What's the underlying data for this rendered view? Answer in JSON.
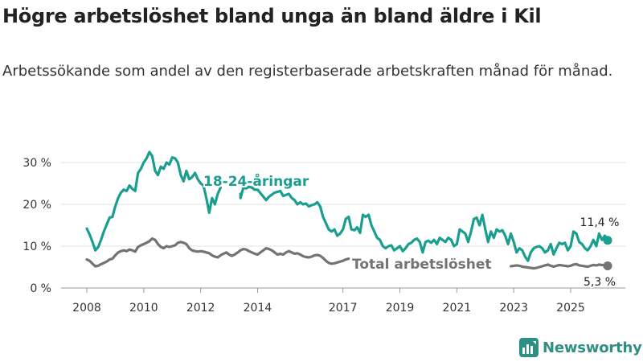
{
  "header": {
    "title": "Högre arbetslöshet bland unga än bland äldre i Kil",
    "subtitle": "Arbetssökande som andel av den registerbaserade arbetskraften månad för månad."
  },
  "brand": {
    "name": "Newsworthy"
  },
  "chart_data": {
    "type": "line",
    "title": "Högre arbetslöshet bland unga än bland äldre i Kil",
    "xlabel": "",
    "ylabel": "",
    "xlim": [
      2007.8,
      2026.5
    ],
    "ylim": [
      0,
      33
    ],
    "y_ticks": [
      0,
      10,
      20,
      30
    ],
    "y_tick_labels": [
      "0 %",
      "10 %",
      "20 %",
      "30 %"
    ],
    "x_ticks": [
      2008,
      2010,
      2012,
      2014,
      2017,
      2019,
      2021,
      2023,
      2025
    ],
    "x_tick_labels": [
      "2008",
      "2010",
      "2012",
      "2014",
      "2017",
      "2019",
      "2021",
      "2023",
      "2025"
    ],
    "grid": true,
    "series": [
      {
        "name": "18-24-åringar",
        "color": "#1a9e8f",
        "label": "18-24-åringar",
        "end_label": "11,4 %",
        "points": [
          [
            2008.0,
            14.2
          ],
          [
            2008.1,
            12.8
          ],
          [
            2008.2,
            11.0
          ],
          [
            2008.3,
            9.0
          ],
          [
            2008.4,
            9.8
          ],
          [
            2008.5,
            11.5
          ],
          [
            2008.6,
            13.5
          ],
          [
            2008.7,
            15.2
          ],
          [
            2008.8,
            16.8
          ],
          [
            2008.9,
            17.0
          ],
          [
            2009.0,
            19.5
          ],
          [
            2009.1,
            21.5
          ],
          [
            2009.2,
            22.8
          ],
          [
            2009.3,
            23.5
          ],
          [
            2009.4,
            23.2
          ],
          [
            2009.5,
            24.5
          ],
          [
            2009.6,
            23.7
          ],
          [
            2009.7,
            23.2
          ],
          [
            2009.8,
            27.5
          ],
          [
            2009.9,
            28.5
          ],
          [
            2010.0,
            30.0
          ],
          [
            2010.1,
            31.0
          ],
          [
            2010.2,
            32.5
          ],
          [
            2010.3,
            31.5
          ],
          [
            2010.4,
            28.0
          ],
          [
            2010.5,
            27.0
          ],
          [
            2010.6,
            29.0
          ],
          [
            2010.7,
            28.5
          ],
          [
            2010.8,
            30.0
          ],
          [
            2010.9,
            29.5
          ],
          [
            2011.0,
            31.2
          ],
          [
            2011.1,
            31.0
          ],
          [
            2011.2,
            30.0
          ],
          [
            2011.3,
            27.0
          ],
          [
            2011.4,
            25.5
          ],
          [
            2011.5,
            28.0
          ],
          [
            2011.6,
            26.0
          ],
          [
            2011.7,
            26.5
          ],
          [
            2011.8,
            27.5
          ],
          [
            2011.9,
            26.0
          ],
          [
            2012.0,
            25.0
          ],
          [
            2012.1,
            24.5
          ],
          [
            2012.2,
            21.5
          ],
          [
            2012.3,
            18.0
          ],
          [
            2012.4,
            21.5
          ],
          [
            2012.5,
            20.0
          ],
          [
            2012.6,
            22.5
          ],
          [
            2012.7,
            24.0
          ],
          [
            2013.4,
            22.5
          ],
          [
            2013.4,
            21.5
          ],
          [
            2013.5,
            24.0
          ],
          [
            2013.6,
            23.8
          ],
          [
            2013.7,
            24.2
          ],
          [
            2013.8,
            24.0
          ],
          [
            2013.9,
            23.5
          ],
          [
            2014.0,
            23.5
          ],
          [
            2014.3,
            21.0
          ],
          [
            2014.4,
            21.8
          ],
          [
            2014.5,
            22.3
          ],
          [
            2014.6,
            22.8
          ],
          [
            2014.7,
            23.0
          ],
          [
            2014.8,
            23.2
          ],
          [
            2014.9,
            22.0
          ],
          [
            2015.1,
            22.5
          ],
          [
            2015.2,
            21.5
          ],
          [
            2015.3,
            21.0
          ],
          [
            2015.4,
            20.0
          ],
          [
            2015.5,
            20.5
          ],
          [
            2015.6,
            20.0
          ],
          [
            2015.7,
            20.2
          ],
          [
            2015.8,
            19.5
          ],
          [
            2015.9,
            19.8
          ],
          [
            2016.0,
            20.0
          ],
          [
            2016.1,
            20.5
          ],
          [
            2016.2,
            19.5
          ],
          [
            2016.3,
            17.0
          ],
          [
            2016.4,
            15.5
          ],
          [
            2016.5,
            14.0
          ],
          [
            2016.6,
            13.5
          ],
          [
            2016.7,
            14.0
          ],
          [
            2016.8,
            12.5
          ],
          [
            2016.9,
            13.0
          ],
          [
            2017.0,
            14.0
          ],
          [
            2017.1,
            16.5
          ],
          [
            2017.2,
            17.0
          ],
          [
            2017.3,
            14.0
          ],
          [
            2017.4,
            13.8
          ],
          [
            2017.5,
            14.5
          ],
          [
            2017.6,
            13.2
          ],
          [
            2017.7,
            17.5
          ],
          [
            2017.8,
            17.0
          ],
          [
            2017.9,
            17.5
          ],
          [
            2018.0,
            15.0
          ],
          [
            2018.1,
            13.5
          ],
          [
            2018.2,
            12.0
          ],
          [
            2018.3,
            11.5
          ],
          [
            2018.4,
            10.0
          ],
          [
            2018.5,
            9.5
          ],
          [
            2018.6,
            10.0
          ],
          [
            2018.7,
            10.2
          ],
          [
            2018.8,
            9.0
          ],
          [
            2018.9,
            9.5
          ],
          [
            2019.0,
            10.0
          ],
          [
            2019.1,
            8.8
          ],
          [
            2019.2,
            9.5
          ],
          [
            2019.3,
            10.5
          ],
          [
            2019.4,
            10.8
          ],
          [
            2019.5,
            11.5
          ],
          [
            2019.6,
            11.8
          ],
          [
            2019.7,
            11.0
          ],
          [
            2019.8,
            8.5
          ],
          [
            2019.9,
            11.0
          ],
          [
            2020.0,
            11.3
          ],
          [
            2020.1,
            10.8
          ],
          [
            2020.2,
            11.5
          ],
          [
            2020.3,
            10.5
          ],
          [
            2020.4,
            12.0
          ],
          [
            2020.5,
            11.5
          ],
          [
            2020.6,
            11.0
          ],
          [
            2020.7,
            12.0
          ],
          [
            2020.8,
            11.5
          ],
          [
            2020.9,
            10.0
          ],
          [
            2021.0,
            10.5
          ],
          [
            2021.1,
            14.0
          ],
          [
            2021.2,
            13.5
          ],
          [
            2021.3,
            13.0
          ],
          [
            2021.4,
            11.0
          ],
          [
            2021.5,
            13.5
          ],
          [
            2021.6,
            16.5
          ],
          [
            2021.7,
            16.8
          ],
          [
            2021.8,
            15.0
          ],
          [
            2021.9,
            17.5
          ],
          [
            2022.0,
            14.0
          ],
          [
            2022.1,
            11.0
          ],
          [
            2022.2,
            13.5
          ],
          [
            2022.3,
            12.0
          ],
          [
            2022.4,
            14.0
          ],
          [
            2022.5,
            13.5
          ],
          [
            2022.6,
            13.8
          ],
          [
            2022.7,
            12.5
          ],
          [
            2022.8,
            10.5
          ],
          [
            2022.9,
            13.0
          ],
          [
            2023.0,
            11.0
          ],
          [
            2023.1,
            8.5
          ],
          [
            2023.2,
            9.5
          ],
          [
            2023.3,
            9.0
          ],
          [
            2023.4,
            7.5
          ],
          [
            2023.5,
            6.5
          ],
          [
            2023.6,
            8.5
          ],
          [
            2023.7,
            9.5
          ],
          [
            2023.8,
            9.8
          ],
          [
            2023.9,
            10.0
          ],
          [
            2024.0,
            9.5
          ],
          [
            2024.1,
            8.5
          ],
          [
            2024.2,
            9.0
          ],
          [
            2024.3,
            10.5
          ],
          [
            2024.4,
            8.0
          ],
          [
            2024.5,
            9.5
          ],
          [
            2024.6,
            10.8
          ],
          [
            2024.7,
            10.5
          ],
          [
            2024.8,
            10.8
          ],
          [
            2024.9,
            9.0
          ],
          [
            2025.0,
            10.0
          ],
          [
            2025.1,
            13.5
          ],
          [
            2025.2,
            13.0
          ],
          [
            2025.3,
            11.0
          ],
          [
            2025.4,
            10.5
          ],
          [
            2025.5,
            9.5
          ],
          [
            2025.6,
            9.0
          ],
          [
            2025.7,
            10.0
          ],
          [
            2025.8,
            11.5
          ],
          [
            2025.9,
            10.0
          ],
          [
            2026.0,
            13.0
          ],
          [
            2026.1,
            11.5
          ],
          [
            2026.2,
            12.5
          ],
          [
            2026.3,
            11.4
          ]
        ]
      },
      {
        "name": "Total arbetslöshet",
        "color": "#737373",
        "label": "Total arbetslöshet",
        "end_label": "5,3 %",
        "points": [
          [
            2008.0,
            6.8
          ],
          [
            2008.1,
            6.5
          ],
          [
            2008.2,
            5.8
          ],
          [
            2008.3,
            5.2
          ],
          [
            2008.4,
            5.3
          ],
          [
            2008.5,
            5.7
          ],
          [
            2008.6,
            6.0
          ],
          [
            2008.7,
            6.3
          ],
          [
            2008.8,
            6.8
          ],
          [
            2008.9,
            7.0
          ],
          [
            2009.0,
            7.8
          ],
          [
            2009.1,
            8.5
          ],
          [
            2009.2,
            8.8
          ],
          [
            2009.3,
            9.0
          ],
          [
            2009.4,
            8.8
          ],
          [
            2009.5,
            9.2
          ],
          [
            2009.6,
            9.0
          ],
          [
            2009.7,
            8.7
          ],
          [
            2009.8,
            9.8
          ],
          [
            2009.9,
            10.2
          ],
          [
            2010.0,
            10.5
          ],
          [
            2010.1,
            10.8
          ],
          [
            2010.2,
            11.2
          ],
          [
            2010.3,
            11.8
          ],
          [
            2010.4,
            11.5
          ],
          [
            2010.5,
            10.5
          ],
          [
            2010.6,
            9.8
          ],
          [
            2010.7,
            9.5
          ],
          [
            2010.8,
            10.0
          ],
          [
            2010.9,
            9.8
          ],
          [
            2011.0,
            10.0
          ],
          [
            2011.1,
            10.2
          ],
          [
            2011.2,
            10.8
          ],
          [
            2011.3,
            11.0
          ],
          [
            2011.4,
            10.8
          ],
          [
            2011.5,
            10.5
          ],
          [
            2011.6,
            9.5
          ],
          [
            2011.7,
            9.0
          ],
          [
            2011.8,
            8.8
          ],
          [
            2011.9,
            8.7
          ],
          [
            2012.0,
            8.8
          ],
          [
            2012.1,
            8.7
          ],
          [
            2012.2,
            8.5
          ],
          [
            2012.3,
            8.3
          ],
          [
            2012.4,
            7.8
          ],
          [
            2012.5,
            7.5
          ],
          [
            2012.6,
            7.3
          ],
          [
            2012.7,
            7.8
          ],
          [
            2012.8,
            8.2
          ],
          [
            2012.9,
            8.5
          ],
          [
            2013.0,
            8.0
          ],
          [
            2013.1,
            7.7
          ],
          [
            2013.2,
            8.0
          ],
          [
            2013.3,
            8.5
          ],
          [
            2013.4,
            9.0
          ],
          [
            2013.5,
            9.3
          ],
          [
            2013.6,
            9.2
          ],
          [
            2013.7,
            8.8
          ],
          [
            2013.8,
            8.5
          ],
          [
            2013.9,
            8.2
          ],
          [
            2014.0,
            8.0
          ],
          [
            2014.1,
            8.5
          ],
          [
            2014.2,
            9.0
          ],
          [
            2014.3,
            9.5
          ],
          [
            2014.4,
            9.3
          ],
          [
            2014.5,
            9.0
          ],
          [
            2014.6,
            8.5
          ],
          [
            2014.7,
            8.0
          ],
          [
            2014.8,
            8.2
          ],
          [
            2014.9,
            8.0
          ],
          [
            2015.0,
            8.5
          ],
          [
            2015.1,
            8.8
          ],
          [
            2015.2,
            8.5
          ],
          [
            2015.3,
            8.2
          ],
          [
            2015.4,
            8.3
          ],
          [
            2015.5,
            8.0
          ],
          [
            2015.6,
            7.6
          ],
          [
            2015.7,
            7.4
          ],
          [
            2015.8,
            7.3
          ],
          [
            2015.9,
            7.5
          ],
          [
            2016.0,
            7.8
          ],
          [
            2016.1,
            7.9
          ],
          [
            2016.2,
            7.7
          ],
          [
            2016.3,
            7.2
          ],
          [
            2016.4,
            6.5
          ],
          [
            2016.5,
            6.0
          ],
          [
            2016.6,
            5.8
          ],
          [
            2016.7,
            5.9
          ],
          [
            2016.8,
            6.1
          ],
          [
            2016.9,
            6.3
          ],
          [
            2017.0,
            6.5
          ],
          [
            2017.1,
            6.8
          ],
          [
            2017.2,
            7.0
          ],
          [
            2022.9,
            5.2
          ],
          [
            2023.0,
            5.3
          ],
          [
            2023.1,
            5.4
          ],
          [
            2023.2,
            5.3
          ],
          [
            2023.3,
            5.1
          ],
          [
            2023.4,
            5.0
          ],
          [
            2023.5,
            4.9
          ],
          [
            2023.6,
            4.8
          ],
          [
            2023.7,
            4.7
          ],
          [
            2023.8,
            4.8
          ],
          [
            2023.9,
            5.0
          ],
          [
            2024.0,
            5.2
          ],
          [
            2024.1,
            5.4
          ],
          [
            2024.2,
            5.6
          ],
          [
            2024.3,
            5.3
          ],
          [
            2024.4,
            5.1
          ],
          [
            2024.5,
            5.3
          ],
          [
            2024.6,
            5.5
          ],
          [
            2024.7,
            5.4
          ],
          [
            2024.8,
            5.3
          ],
          [
            2024.9,
            5.2
          ],
          [
            2025.0,
            5.3
          ],
          [
            2025.1,
            5.6
          ],
          [
            2025.2,
            5.7
          ],
          [
            2025.3,
            5.4
          ],
          [
            2025.4,
            5.3
          ],
          [
            2025.5,
            5.2
          ],
          [
            2025.6,
            5.1
          ],
          [
            2025.7,
            5.3
          ],
          [
            2025.8,
            5.5
          ],
          [
            2025.9,
            5.4
          ],
          [
            2026.0,
            5.6
          ],
          [
            2026.1,
            5.5
          ],
          [
            2026.2,
            5.4
          ],
          [
            2026.3,
            5.3
          ]
        ]
      }
    ]
  }
}
